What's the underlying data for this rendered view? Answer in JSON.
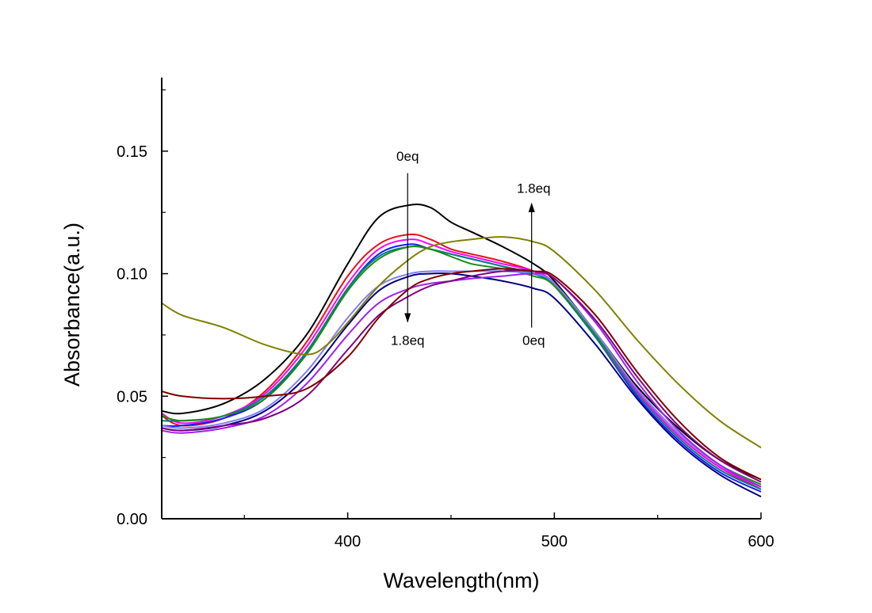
{
  "chart_data": {
    "type": "line",
    "xlabel": "Wavelength(nm)",
    "ylabel": "Absorbance(a.u.)",
    "xlim": [
      310,
      600
    ],
    "ylim": [
      0.0,
      0.18
    ],
    "x_ticks": [
      400,
      500,
      600
    ],
    "x_minor_ticks": [
      350,
      450,
      550
    ],
    "y_ticks": [
      0.0,
      0.05,
      0.1,
      0.15
    ],
    "x_tick_labels": [
      "400",
      "500",
      "600"
    ],
    "y_tick_labels": [
      "0.00",
      "0.05",
      "0.10",
      "0.15"
    ],
    "grid": false,
    "annotations": [
      {
        "text": "0eq",
        "x": 429,
        "y": 0.146
      },
      {
        "text": "1.8eq",
        "x": 429,
        "y": 0.071
      },
      {
        "text": "1.8eq",
        "x": 490,
        "y": 0.133
      },
      {
        "text": "0eq",
        "x": 490,
        "y": 0.071
      }
    ],
    "arrows": [
      {
        "x": 429,
        "y_from": 0.141,
        "y_to": 0.08
      },
      {
        "x": 489,
        "y_from": 0.078,
        "y_to": 0.129
      }
    ],
    "series": [
      {
        "color": "#000000",
        "x": [
          310,
          320,
          340,
          360,
          380,
          400,
          415,
          430,
          440,
          450,
          460,
          475,
          490,
          500,
          520,
          540,
          560,
          580,
          600
        ],
        "y": [
          0.044,
          0.043,
          0.047,
          0.057,
          0.075,
          0.104,
          0.123,
          0.128,
          0.127,
          0.121,
          0.117,
          0.111,
          0.104,
          0.097,
          0.076,
          0.054,
          0.037,
          0.024,
          0.016
        ]
      },
      {
        "color": "#e8101a",
        "x": [
          310,
          320,
          340,
          360,
          380,
          400,
          415,
          430,
          440,
          450,
          460,
          475,
          490,
          500,
          520,
          540,
          560,
          580,
          600
        ],
        "y": [
          0.042,
          0.038,
          0.041,
          0.052,
          0.072,
          0.099,
          0.112,
          0.116,
          0.114,
          0.11,
          0.108,
          0.105,
          0.101,
          0.096,
          0.075,
          0.052,
          0.034,
          0.021,
          0.012
        ]
      },
      {
        "color": "#ff00ff",
        "x": [
          310,
          320,
          340,
          360,
          380,
          400,
          415,
          430,
          440,
          450,
          460,
          475,
          490,
          500,
          520,
          540,
          560,
          580,
          600
        ],
        "y": [
          0.043,
          0.039,
          0.042,
          0.051,
          0.07,
          0.096,
          0.11,
          0.114,
          0.112,
          0.109,
          0.107,
          0.104,
          0.101,
          0.096,
          0.075,
          0.052,
          0.034,
          0.021,
          0.013
        ]
      },
      {
        "color": "#1a1aff",
        "x": [
          310,
          320,
          340,
          360,
          380,
          400,
          415,
          430,
          440,
          450,
          460,
          475,
          490,
          500,
          520,
          540,
          560,
          580,
          600
        ],
        "y": [
          0.038,
          0.038,
          0.041,
          0.049,
          0.068,
          0.094,
          0.108,
          0.112,
          0.11,
          0.108,
          0.106,
          0.103,
          0.1,
          0.095,
          0.074,
          0.05,
          0.032,
          0.019,
          0.011
        ]
      },
      {
        "color": "#008080",
        "x": [
          310,
          320,
          340,
          360,
          380,
          400,
          415,
          430,
          440,
          450,
          460,
          475,
          490,
          500,
          520,
          540,
          560,
          580,
          600
        ],
        "y": [
          0.04,
          0.04,
          0.042,
          0.05,
          0.068,
          0.094,
          0.107,
          0.111,
          0.11,
          0.108,
          0.106,
          0.103,
          0.1,
          0.095,
          0.074,
          0.051,
          0.033,
          0.02,
          0.012
        ]
      },
      {
        "color": "#1a8c1a",
        "x": [
          310,
          320,
          340,
          360,
          380,
          400,
          415,
          430,
          440,
          450,
          460,
          475,
          490,
          500,
          520,
          540,
          560,
          580,
          600
        ],
        "y": [
          0.042,
          0.04,
          0.042,
          0.049,
          0.067,
          0.093,
          0.106,
          0.111,
          0.11,
          0.107,
          0.104,
          0.102,
          0.099,
          0.095,
          0.075,
          0.053,
          0.035,
          0.022,
          0.014
        ]
      },
      {
        "color": "#8080ff",
        "x": [
          310,
          320,
          340,
          360,
          380,
          400,
          415,
          430,
          440,
          450,
          460,
          475,
          490,
          500,
          520,
          540,
          560,
          580,
          600
        ],
        "y": [
          0.038,
          0.037,
          0.039,
          0.045,
          0.06,
          0.082,
          0.095,
          0.1,
          0.101,
          0.101,
          0.101,
          0.101,
          0.1,
          0.096,
          0.076,
          0.053,
          0.035,
          0.022,
          0.013
        ]
      },
      {
        "color": "#000080",
        "x": [
          310,
          320,
          340,
          360,
          380,
          400,
          415,
          430,
          440,
          450,
          460,
          475,
          490,
          500,
          520,
          540,
          560,
          580,
          600
        ],
        "y": [
          0.037,
          0.036,
          0.038,
          0.044,
          0.058,
          0.079,
          0.093,
          0.099,
          0.1,
          0.1,
          0.099,
          0.097,
          0.094,
          0.09,
          0.071,
          0.049,
          0.031,
          0.018,
          0.009
        ]
      },
      {
        "color": "#a020f0",
        "x": [
          310,
          320,
          340,
          360,
          380,
          400,
          415,
          430,
          440,
          450,
          460,
          475,
          490,
          500,
          520,
          540,
          560,
          580,
          600
        ],
        "y": [
          0.036,
          0.035,
          0.037,
          0.042,
          0.055,
          0.075,
          0.088,
          0.094,
          0.096,
          0.097,
          0.098,
          0.099,
          0.1,
          0.098,
          0.08,
          0.056,
          0.036,
          0.022,
          0.013
        ]
      },
      {
        "color": "#800080",
        "x": [
          310,
          320,
          340,
          360,
          380,
          400,
          415,
          430,
          440,
          450,
          460,
          475,
          490,
          500,
          520,
          540,
          560,
          580,
          600
        ],
        "y": [
          0.037,
          0.036,
          0.038,
          0.041,
          0.05,
          0.069,
          0.083,
          0.091,
          0.095,
          0.097,
          0.099,
          0.101,
          0.101,
          0.098,
          0.081,
          0.058,
          0.038,
          0.024,
          0.015
        ]
      },
      {
        "color": "#800000",
        "x": [
          310,
          320,
          340,
          360,
          380,
          400,
          415,
          430,
          440,
          450,
          460,
          475,
          490,
          500,
          520,
          540,
          560,
          580,
          600
        ],
        "y": [
          0.052,
          0.05,
          0.049,
          0.05,
          0.053,
          0.066,
          0.082,
          0.094,
          0.098,
          0.1,
          0.101,
          0.102,
          0.101,
          0.099,
          0.083,
          0.06,
          0.04,
          0.025,
          0.016
        ]
      },
      {
        "color": "#808000",
        "x": [
          310,
          320,
          340,
          360,
          380,
          390,
          400,
          415,
          430,
          440,
          450,
          460,
          475,
          490,
          500,
          520,
          540,
          560,
          580,
          600
        ],
        "y": [
          0.088,
          0.083,
          0.078,
          0.071,
          0.067,
          0.071,
          0.08,
          0.095,
          0.106,
          0.111,
          0.113,
          0.114,
          0.115,
          0.113,
          0.109,
          0.093,
          0.073,
          0.055,
          0.04,
          0.029
        ]
      }
    ]
  }
}
